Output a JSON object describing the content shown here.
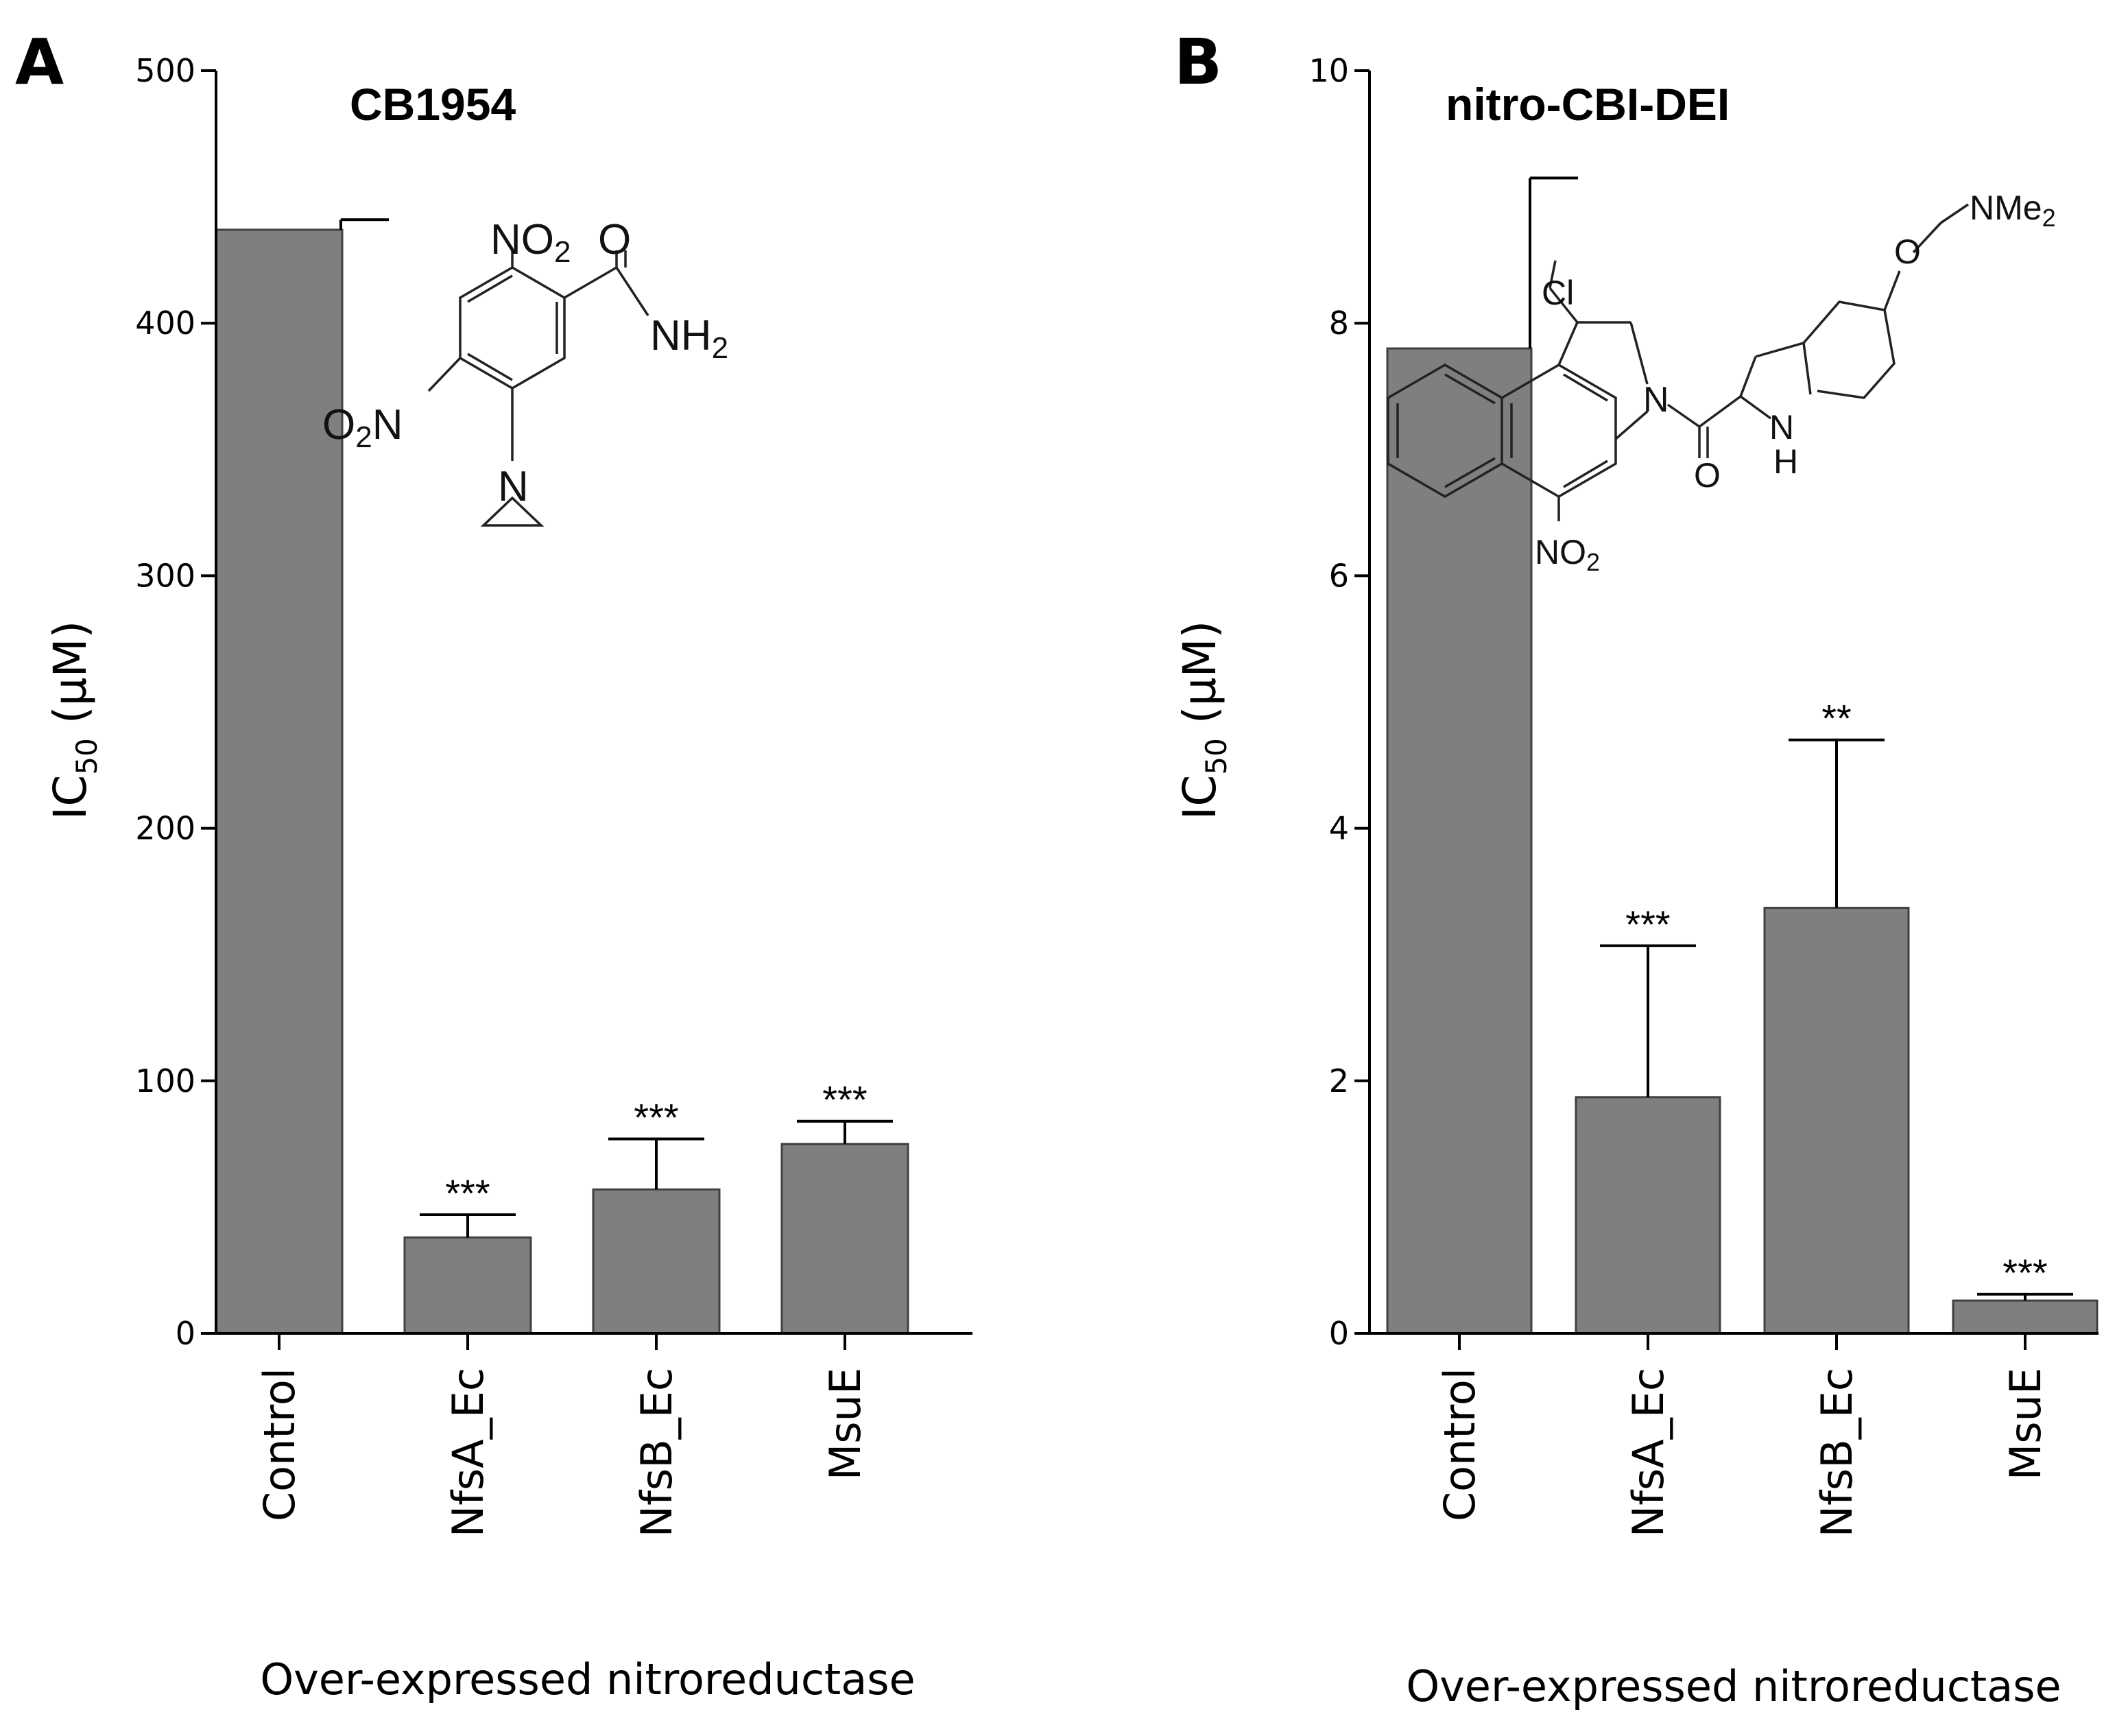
{
  "figure": {
    "xlabel_common": "Over-expressed nitroreductase"
  },
  "chart_data": [
    {
      "type": "bar",
      "panel": "A",
      "title": "CB1954",
      "ylabel": "IC",
      "ylabel_sub": "50",
      "ylabel_unit": " (µM)",
      "xlabel": "Over-expressed nitroreductase",
      "ylim": [
        0,
        500
      ],
      "yticks": [
        0,
        100,
        200,
        300,
        400,
        500
      ],
      "ytick_labels": [
        "0",
        "100",
        "200",
        "300",
        "400",
        "500"
      ],
      "categories": [
        "Control",
        "NfsA_Ec",
        "NfsB_Ec",
        "MsuE"
      ],
      "values": [
        437,
        38,
        57,
        75
      ],
      "error_upper": [
        441,
        47,
        77,
        84
      ],
      "significance": [
        "",
        "***",
        "***",
        "***"
      ],
      "structure_labels": {
        "no2_top": "NO",
        "no2_top_sub": "2",
        "o_carbonyl": "O",
        "nh2": "NH",
        "nh2_sub": "2",
        "o2n_left": "O",
        "o2n_left_sub": "2",
        "o2n_left_n": "N",
        "aziridine_n": "N"
      }
    },
    {
      "type": "bar",
      "panel": "B",
      "title": "nitro-CBI-DEI",
      "ylabel": "IC",
      "ylabel_sub": "50",
      "ylabel_unit": " (µM)",
      "xlabel": "Over-expressed nitroreductase",
      "ylim": [
        0,
        10
      ],
      "yticks": [
        0,
        2,
        4,
        6,
        8,
        10
      ],
      "ytick_labels": [
        "0",
        "2",
        "4",
        "6",
        "8",
        "10"
      ],
      "categories": [
        "Control",
        "NfsA_Ec",
        "NfsB_Ec",
        "MsuE"
      ],
      "values": [
        7.8,
        1.87,
        3.37,
        0.26
      ],
      "error_upper": [
        9.15,
        3.07,
        4.7,
        0.31
      ],
      "significance": [
        "",
        "***",
        "**",
        "***"
      ],
      "structure_labels": {
        "cl": "Cl",
        "n_ring": "N",
        "o_amide": "O",
        "nh": "N",
        "nh_h": "H",
        "o_ether": "O",
        "nme2": "NMe",
        "nme2_sub": "2",
        "no2": "NO",
        "no2_sub": "2"
      }
    }
  ]
}
